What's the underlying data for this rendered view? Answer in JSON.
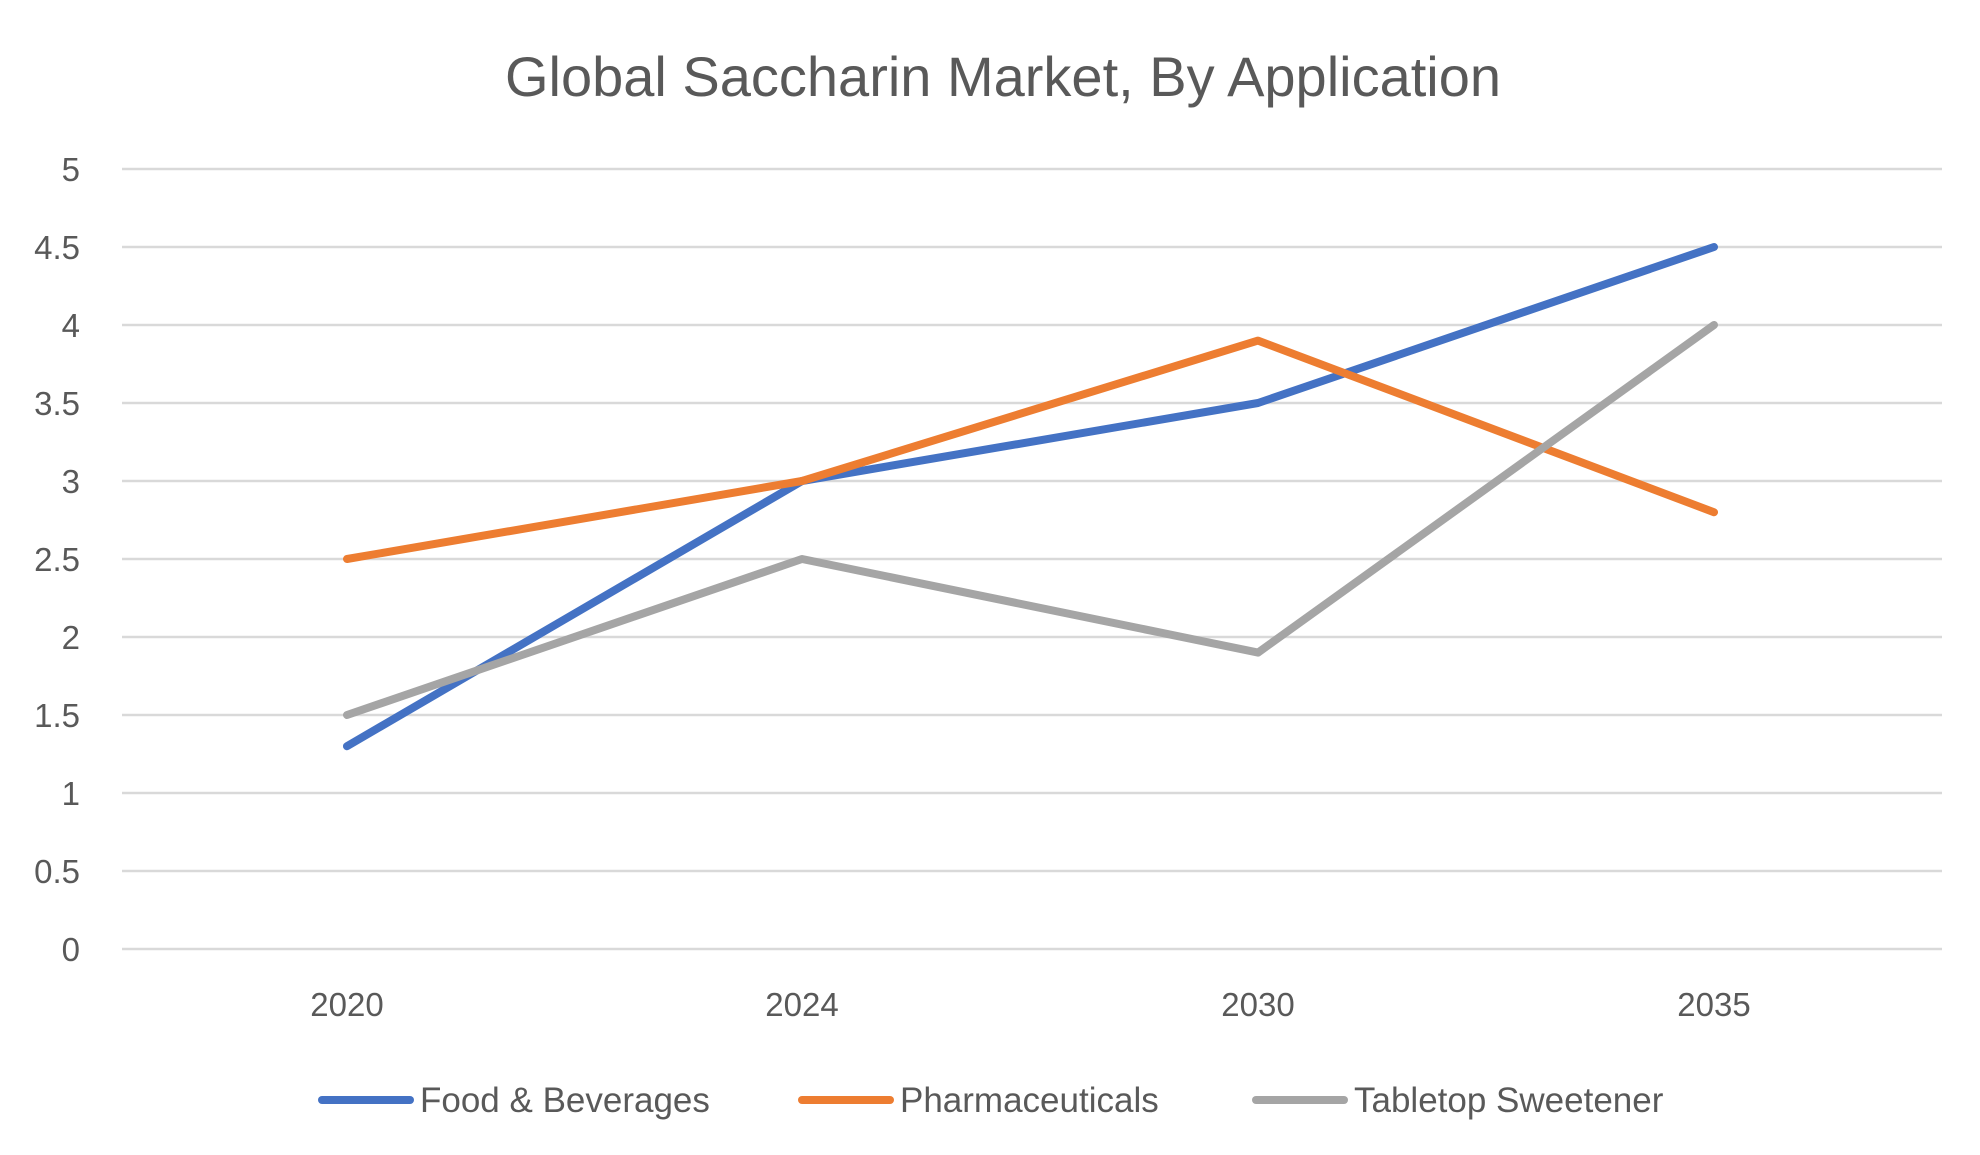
{
  "chart_data": {
    "type": "line",
    "title": "Global Saccharin Market, By Application",
    "xlabel": "",
    "ylabel": "",
    "categories": [
      "2020",
      "2024",
      "2030",
      "2035"
    ],
    "ylim": [
      0,
      5
    ],
    "yticks": [
      "0",
      "0.5",
      "1",
      "1.5",
      "2",
      "2.5",
      "3",
      "3.5",
      "4",
      "4.5",
      "5"
    ],
    "grid": true,
    "legend_position": "bottom",
    "series": [
      {
        "name": "Food & Beverages",
        "color": "#4472c4",
        "values": [
          1.3,
          3.0,
          3.5,
          4.5
        ]
      },
      {
        "name": "Pharmaceuticals",
        "color": "#ed7d31",
        "values": [
          2.5,
          3.0,
          3.9,
          2.8
        ]
      },
      {
        "name": "Tabletop Sweetener",
        "color": "#a5a5a5",
        "values": [
          1.5,
          2.5,
          1.9,
          4.0
        ]
      }
    ]
  }
}
